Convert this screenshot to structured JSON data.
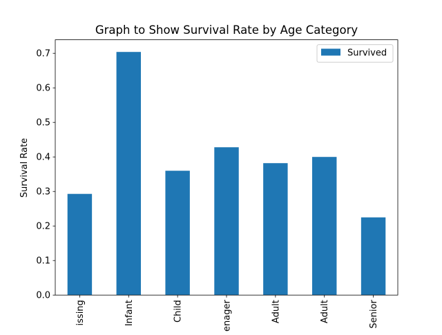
{
  "chart_data": {
    "type": "bar",
    "title": "Graph to Show Survival Rate by Age Category",
    "xlabel": "",
    "ylabel": "Survival Rate",
    "categories": [
      "issing",
      "Infant",
      "Child",
      "enager",
      "Adult",
      "Adult",
      "Senior"
    ],
    "series": [
      {
        "name": "Survived",
        "values": [
          0.293,
          0.704,
          0.36,
          0.428,
          0.382,
          0.4,
          0.225
        ],
        "color": "#1f77b4"
      }
    ],
    "yticks": [
      "0.0",
      "0.1",
      "0.2",
      "0.3",
      "0.4",
      "0.5",
      "0.6",
      "0.7"
    ],
    "ylim": [
      0,
      0.7
    ]
  }
}
